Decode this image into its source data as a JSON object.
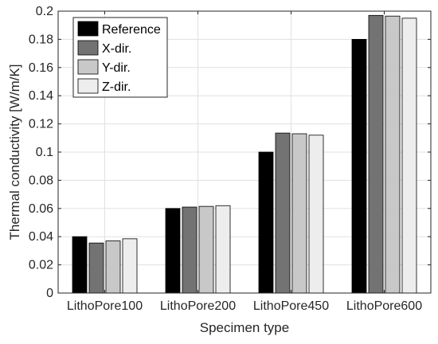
{
  "chart_data": {
    "type": "bar",
    "xlabel": "Specimen type",
    "ylabel": "Thermal conductivity [W/m/K]",
    "ylim": [
      0,
      0.2
    ],
    "yticks": [
      0,
      0.02,
      0.04,
      0.06,
      0.08,
      0.1,
      0.12,
      0.14,
      0.16,
      0.18,
      0.2
    ],
    "ytick_labels": [
      "0",
      "0.02",
      "0.04",
      "0.06",
      "0.08",
      "0.1",
      "0.12",
      "0.14",
      "0.16",
      "0.18",
      "0.2"
    ],
    "categories": [
      "LithoPore100",
      "LithoPore200",
      "LithoPore450",
      "LithoPore600"
    ],
    "series": [
      {
        "name": "Reference",
        "color": "#000000",
        "values": [
          0.04,
          0.06,
          0.1,
          0.18
        ]
      },
      {
        "name": "X-dir.",
        "color": "#737373",
        "values": [
          0.0355,
          0.061,
          0.1135,
          0.197
        ]
      },
      {
        "name": "Y-dir.",
        "color": "#c8c8c8",
        "values": [
          0.037,
          0.0615,
          0.113,
          0.1965
        ]
      },
      {
        "name": "Z-dir.",
        "color": "#ededed",
        "values": [
          0.0385,
          0.062,
          0.112,
          0.195
        ]
      }
    ],
    "grid": true,
    "legend_position": "top-left"
  }
}
